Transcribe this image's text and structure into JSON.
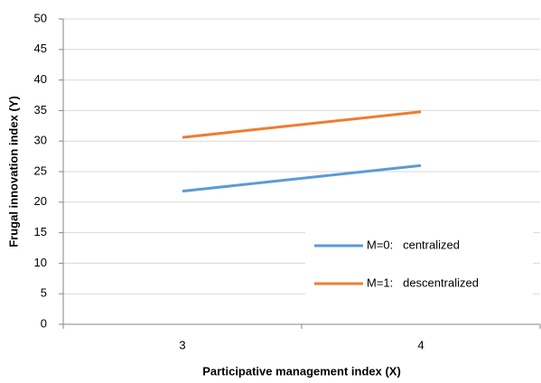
{
  "chart_data": {
    "type": "line",
    "x_label": "Participative management index (X)",
    "y_label": "Frugal innovation index (Y)",
    "categories": [
      "3",
      "4"
    ],
    "series": [
      {
        "name": "M=0:   centralized",
        "color": "#5b9bd5",
        "values": [
          21.8,
          26.0
        ]
      },
      {
        "name": "M=1:   descentralized",
        "color": "#ed7d31",
        "values": [
          30.6,
          34.8
        ]
      }
    ],
    "ylim": [
      0,
      50
    ],
    "yticks": [
      0,
      5,
      10,
      15,
      20,
      25,
      30,
      35,
      40,
      45,
      50
    ],
    "grid": true,
    "legend": "lower right"
  }
}
